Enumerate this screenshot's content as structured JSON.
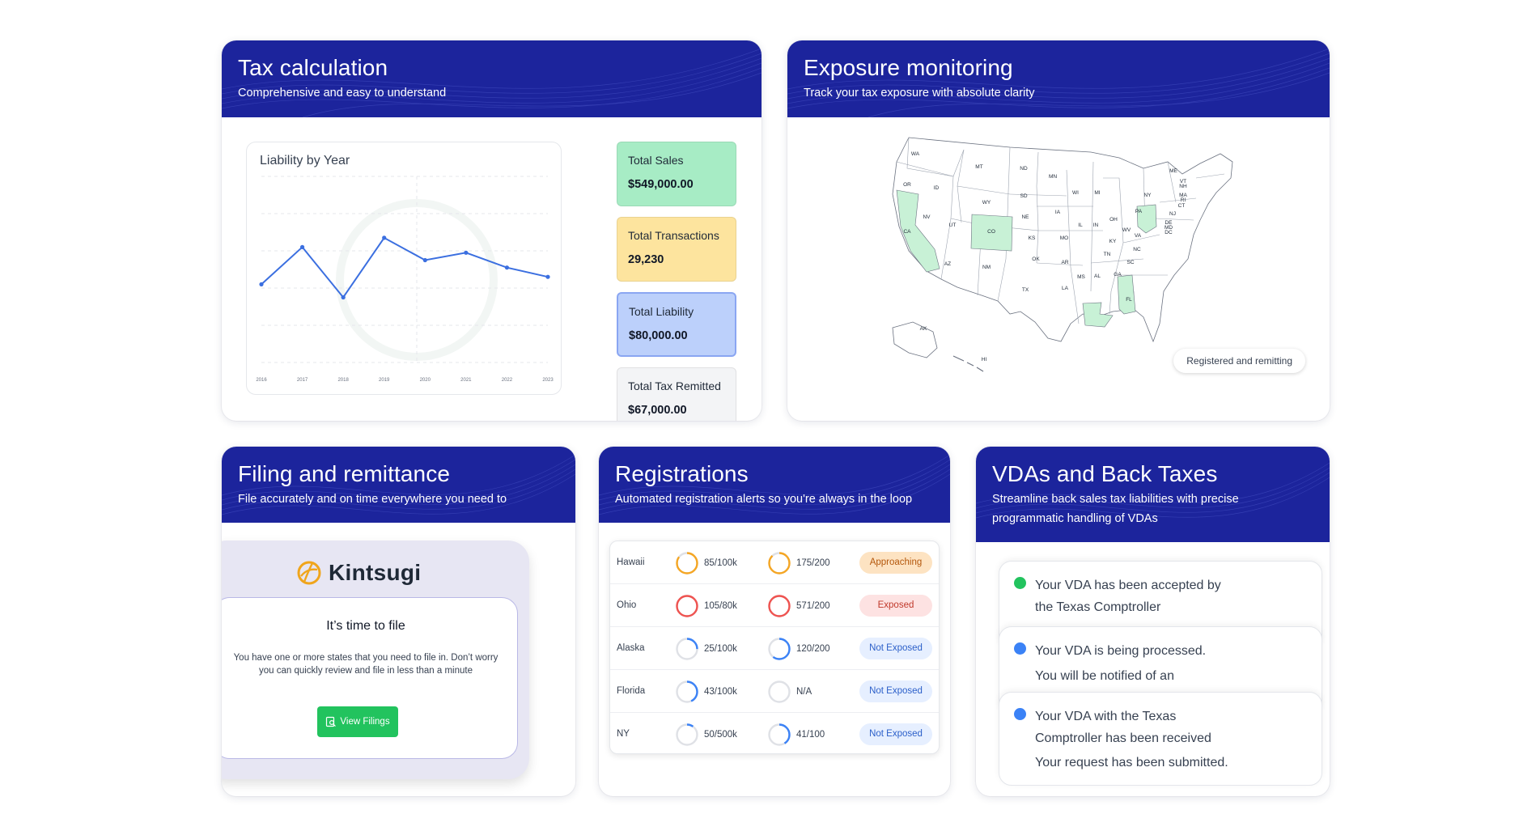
{
  "tax": {
    "title": "Tax calculation",
    "subtitle": "Comprehensive and easy to understand",
    "chart_title": "Liability by Year",
    "stats": [
      {
        "label": "Total Sales",
        "value": "$549,000.00",
        "color": "#a7ecc5"
      },
      {
        "label": "Total Transactions",
        "value": "29,230",
        "color": "#fde49e"
      },
      {
        "label": "Total Liability",
        "value": "$80,000.00",
        "color": "#bcd0fb"
      },
      {
        "label": "Total Tax Remitted",
        "value": "$67,000.00",
        "color": "#f3f4f6"
      }
    ]
  },
  "chart_data": {
    "type": "line",
    "title": "Liability by Year",
    "categories": [
      "2016",
      "2017",
      "2018",
      "2019",
      "2020",
      "2021",
      "2022",
      "2023"
    ],
    "series": [
      {
        "name": "Liability",
        "values": [
          42,
          62,
          35,
          67,
          55,
          59,
          51,
          46
        ]
      }
    ],
    "ylim": [
      0,
      100
    ],
    "xlabel": "",
    "ylabel": "",
    "color": "#3b6fe0"
  },
  "exposure": {
    "title": "Exposure monitoring",
    "subtitle": "Track your tax exposure with absolute clarity",
    "legend": "Registered and remitting",
    "highlight_color": "#c8f1d6",
    "states": [
      "WA",
      "OR",
      "CA",
      "NV",
      "ID",
      "MT",
      "WY",
      "UT",
      "AZ",
      "CO",
      "NM",
      "ND",
      "SD",
      "NE",
      "KS",
      "OK",
      "TX",
      "MN",
      "IA",
      "MO",
      "AR",
      "LA",
      "WI",
      "IL",
      "MI",
      "IN",
      "OH",
      "KY",
      "TN",
      "MS",
      "AL",
      "GA",
      "FL",
      "SC",
      "NC",
      "VA",
      "WV",
      "PA",
      "NY",
      "ME",
      "VT",
      "NH",
      "MA",
      "RI",
      "CT",
      "NJ",
      "DE",
      "MD",
      "DC",
      "AK",
      "HI"
    ]
  },
  "filing": {
    "title": "Filing and remittance",
    "subtitle": "File accurately and on time everywhere you need to",
    "brand": "Kintsugi",
    "inner_title": "It’s time to file",
    "inner_body": "You have one or more states that you need to file in. Don’t worry you can quickly review and file in less than a minute",
    "button": "View Filings"
  },
  "registrations": {
    "title": "Registrations",
    "subtitle": "Automated registration alerts so you're always in the loop",
    "rows": [
      {
        "state": "Hawaii",
        "sales": "85/100k",
        "sales_pct": 0.85,
        "tx": "175/200",
        "tx_pct": 0.875,
        "ring_color": "#f5a623",
        "status": "Approaching",
        "badge_bg": "#fde3c2",
        "badge_fg": "#b4570b"
      },
      {
        "state": "Ohio",
        "sales": "105/80k",
        "sales_pct": 1.0,
        "tx": "571/200",
        "tx_pct": 1.0,
        "ring_color": "#ef5350",
        "status": "Exposed",
        "badge_bg": "#fde2e2",
        "badge_fg": "#c0392b"
      },
      {
        "state": "Alaska",
        "sales": "25/100k",
        "sales_pct": 0.25,
        "tx": "120/200",
        "tx_pct": 0.6,
        "ring_color": "#3b82f6",
        "status": "Not Exposed",
        "badge_bg": "#e6efff",
        "badge_fg": "#2b5fc9"
      },
      {
        "state": "Florida",
        "sales": "43/100k",
        "sales_pct": 0.43,
        "tx": "N/A",
        "tx_pct": 0,
        "ring_color": "#3b82f6",
        "status": "Not Exposed",
        "badge_bg": "#e6efff",
        "badge_fg": "#2b5fc9"
      },
      {
        "state": "NY",
        "sales": "50/500k",
        "sales_pct": 0.1,
        "tx": "41/100",
        "tx_pct": 0.41,
        "ring_color": "#3b82f6",
        "status": "Not Exposed",
        "badge_bg": "#e6efff",
        "badge_fg": "#2b5fc9"
      }
    ]
  },
  "vda": {
    "title": "VDAs and Back Taxes",
    "subtitle": "Streamline back sales tax liabilities with precise programmatic handling of VDAs",
    "items": [
      {
        "line1": "Your VDA has been accepted by",
        "line2": "the Texas Comptroller",
        "line3": "",
        "dot_color": "#22c35e"
      },
      {
        "line1": "Your VDA is being processed.",
        "line2": "You will be notified of an",
        "line3": "",
        "dot_color": "#3b82f6"
      },
      {
        "line1": "Your VDA with the Texas",
        "line2": "Comptroller has been received",
        "line3": "Your request has been submitted.",
        "dot_color": "#3b82f6"
      }
    ]
  }
}
